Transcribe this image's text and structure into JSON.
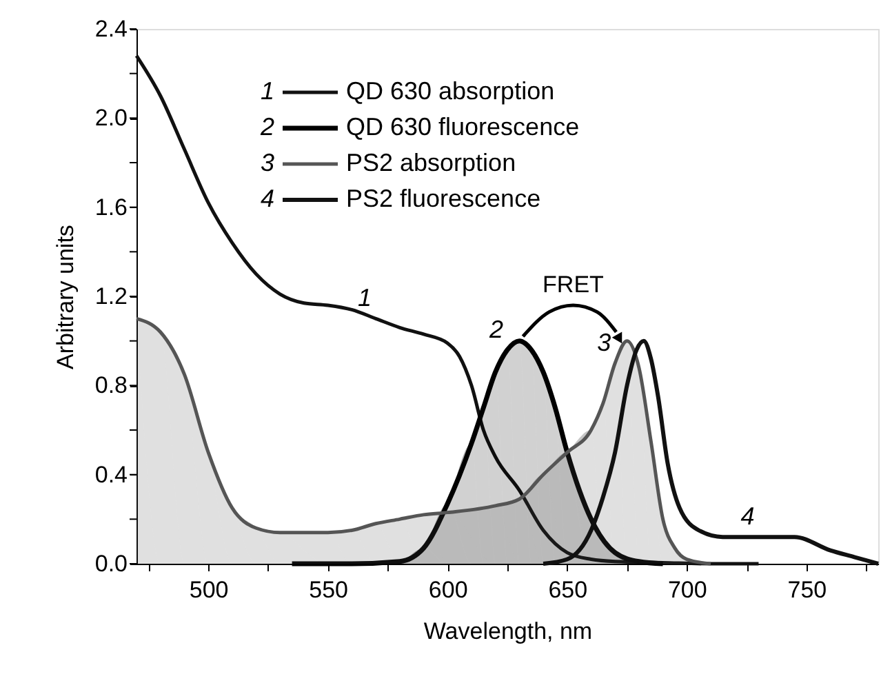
{
  "chart_data": {
    "type": "line",
    "xlabel": "Wavelength, nm",
    "ylabel": "Arbitrary units",
    "xlim": [
      470,
      780
    ],
    "ylim": [
      0,
      2.4
    ],
    "xticks": [
      {
        "value": 475,
        "label": null
      },
      500,
      {
        "value": 525,
        "label": null
      },
      550,
      {
        "value": 575,
        "label": null
      },
      600,
      {
        "value": 625,
        "label": null
      },
      650,
      {
        "value": 675,
        "label": null
      },
      700,
      {
        "value": 725,
        "label": null
      },
      750,
      {
        "value": 775,
        "label": null
      }
    ],
    "yticks": [
      {
        "value": 0,
        "label": "0.0"
      },
      {
        "value": 0.2,
        "label": null
      },
      {
        "value": 0.4,
        "label": "0.4"
      },
      {
        "value": 0.6,
        "label": null
      },
      {
        "value": 0.8,
        "label": "0.8"
      },
      {
        "value": 1.0,
        "label": null
      },
      {
        "value": 1.2,
        "label": "1.2"
      },
      {
        "value": 1.4,
        "label": null
      },
      {
        "value": 1.6,
        "label": "1.6"
      },
      {
        "value": 1.8,
        "label": null
      },
      {
        "value": 2.0,
        "label": "2.0"
      },
      {
        "value": 2.2,
        "label": null
      },
      {
        "value": 2.4,
        "label": "2.4"
      }
    ],
    "grid": false,
    "legend": "top",
    "marker": "none",
    "line_style": "solid",
    "series": [
      {
        "name": "QD 630 absorption",
        "color": "#111111",
        "x": [
          470,
          480,
          490,
          500,
          510,
          520,
          530,
          540,
          550,
          560,
          570,
          580,
          590,
          600,
          605,
          610,
          615,
          620,
          630,
          640,
          650,
          660,
          670,
          690,
          710,
          730
        ],
        "values": [
          2.28,
          2.1,
          1.86,
          1.62,
          1.44,
          1.3,
          1.21,
          1.17,
          1.16,
          1.14,
          1.1,
          1.06,
          1.03,
          0.99,
          0.93,
          0.8,
          0.6,
          0.48,
          0.33,
          0.15,
          0.05,
          0.02,
          0.01,
          0.005,
          0.0,
          0.0
        ]
      },
      {
        "name": "QD 630 fluorescence",
        "color": "#000000",
        "type": "area",
        "x": [
          535,
          560,
          580,
          590,
          600,
          610,
          615,
          620,
          625,
          630,
          635,
          640,
          645,
          650,
          660,
          670,
          680,
          690
        ],
        "values": [
          0.0,
          0.0,
          0.01,
          0.07,
          0.27,
          0.54,
          0.7,
          0.86,
          0.96,
          1.0,
          0.96,
          0.86,
          0.7,
          0.5,
          0.2,
          0.05,
          0.01,
          0.0
        ]
      },
      {
        "name": "PS2 absorption",
        "color": "#555555",
        "type": "area",
        "x": [
          470,
          480,
          490,
          500,
          510,
          520,
          530,
          550,
          560,
          570,
          580,
          590,
          600,
          620,
          630,
          640,
          650,
          660,
          665,
          670,
          675,
          680,
          685,
          690,
          695,
          700,
          710
        ],
        "values": [
          1.1,
          1.04,
          0.85,
          0.5,
          0.25,
          0.16,
          0.14,
          0.14,
          0.15,
          0.18,
          0.2,
          0.22,
          0.23,
          0.26,
          0.29,
          0.4,
          0.5,
          0.6,
          0.72,
          0.9,
          1.0,
          0.88,
          0.55,
          0.2,
          0.07,
          0.02,
          0.0
        ]
      },
      {
        "name": "PS2 fluorescence",
        "color": "#111111",
        "x": [
          640,
          650,
          660,
          665,
          670,
          675,
          679,
          682,
          685,
          688,
          692,
          697,
          705,
          715,
          730,
          745,
          760,
          770,
          780
        ],
        "values": [
          0.0,
          0.02,
          0.15,
          0.3,
          0.5,
          0.8,
          0.96,
          1.0,
          0.92,
          0.75,
          0.45,
          0.25,
          0.15,
          0.12,
          0.12,
          0.12,
          0.06,
          0.03,
          0.0
        ]
      }
    ],
    "annotations": [
      {
        "text": "1",
        "x": 570,
        "y": 1.1
      },
      {
        "text": "2",
        "x": 625,
        "y": 0.96
      },
      {
        "text": "3",
        "x": 670,
        "y": 0.9
      },
      {
        "text": "4",
        "x": 730,
        "y": 0.12
      },
      "FRET"
    ]
  }
}
